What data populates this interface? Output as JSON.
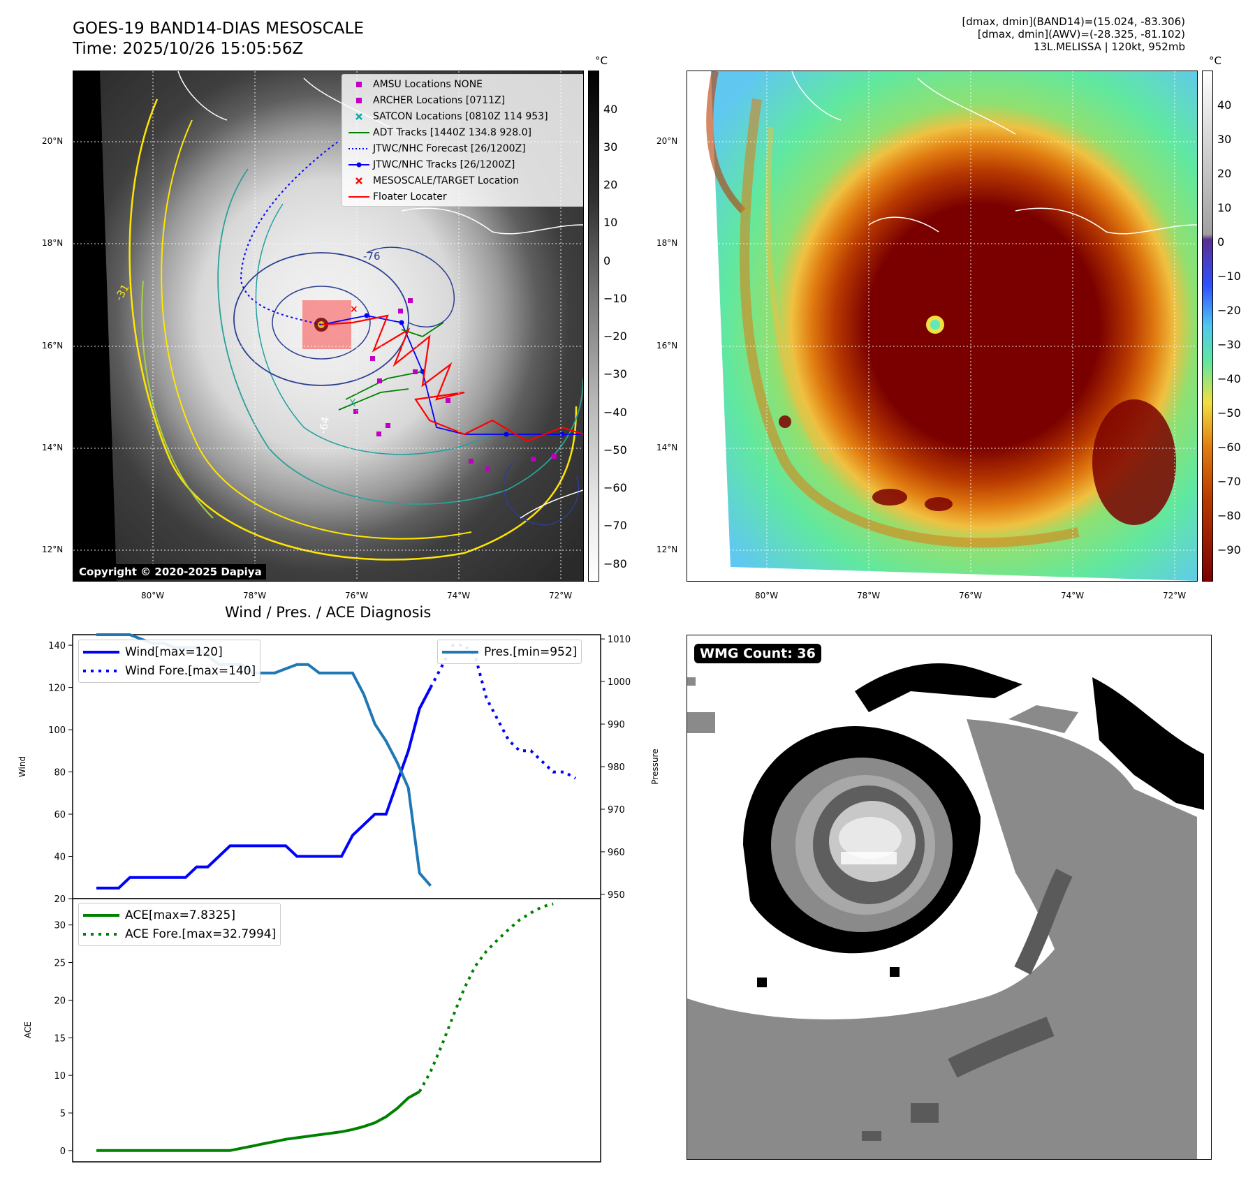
{
  "header": {
    "title_line1": "GOES-19 BAND14-DIAS MESOSCALE",
    "title_line2": "Time: 2025/10/26 15:05:56Z",
    "stats_line1": "[dmax, dmin](BAND14)=(15.024, -83.306)",
    "stats_line2": "[dmax, dmin](AWV)=(-28.325, -81.102)",
    "stats_line3": "13L.MELISSA | 120kt, 952mb"
  },
  "map": {
    "lat_labels": [
      "20°N",
      "18°N",
      "16°N",
      "14°N",
      "12°N"
    ],
    "lon_labels": [
      "80°W",
      "78°W",
      "76°W",
      "74°W",
      "72°W"
    ],
    "contour_labels": [
      "-76",
      "-64",
      "-31"
    ],
    "copyright": "Copyright © 2020-2025 Dapiya",
    "colors": {
      "track_red": "#ff0000",
      "forecast_blue": "#0000ff",
      "adt_green": "#008000",
      "amsu_archer": "#c000c0",
      "satcon": "#00b0b0"
    }
  },
  "legend": [
    {
      "icon": "square-marker",
      "color": "#c000c0",
      "label": "AMSU Locations NONE"
    },
    {
      "icon": "square-marker",
      "color": "#c000c0",
      "label": "ARCHER Locations [0711Z]"
    },
    {
      "icon": "x-marker",
      "color": "#00b0b0",
      "label": "SATCON Locations [0810Z 114 953]"
    },
    {
      "icon": "solid-line",
      "color": "#008000",
      "label": "ADT Tracks [1440Z 134.8 928.0]"
    },
    {
      "icon": "dotted-line",
      "color": "#0000ff",
      "label": "JTWC/NHC Forecast [26/1200Z]"
    },
    {
      "icon": "dot-line",
      "color": "#0000ff",
      "label": "JTWC/NHC Tracks [26/1200Z]"
    },
    {
      "icon": "x-marker",
      "color": "#ff0000",
      "label": "MESOSCALE/TARGET Location"
    },
    {
      "icon": "solid-line",
      "color": "#ff0000",
      "label": "Floater Locater"
    }
  ],
  "colorbar_gray": {
    "unit": "°C",
    "ticks": [
      "40",
      "30",
      "20",
      "10",
      "0",
      "−10",
      "−20",
      "−30",
      "−40",
      "−50",
      "−60",
      "−70",
      "−80"
    ]
  },
  "colorbar_color": {
    "unit": "°C",
    "ticks": [
      "40",
      "30",
      "20",
      "10",
      "0",
      "−10",
      "−20",
      "−30",
      "−40",
      "−50",
      "−60",
      "−70",
      "−80",
      "−90"
    ]
  },
  "wmg": {
    "badge": "WMG Count: 36"
  },
  "chart_data": [
    {
      "type": "line",
      "title": "Wind / Pres. / ACE Diagnosis",
      "ylabel": "Wind",
      "y2label": "Pressure",
      "ylim": [
        20,
        145
      ],
      "y2lim": [
        949,
        1011
      ],
      "yticks": [
        "140",
        "120",
        "100",
        "80",
        "60",
        "40",
        "20"
      ],
      "y2ticks": [
        "1010",
        "1000",
        "990",
        "980",
        "970",
        "960",
        "950"
      ],
      "series": [
        {
          "name": "Wind[max=120]",
          "style": "solid",
          "color": "#0000ff",
          "axis": "left",
          "values": [
            25,
            25,
            25,
            30,
            30,
            30,
            30,
            30,
            30,
            35,
            35,
            40,
            45,
            45,
            45,
            45,
            45,
            45,
            40,
            40,
            40,
            40,
            40,
            50,
            55,
            60,
            60,
            75,
            90,
            110,
            120
          ]
        },
        {
          "name": "Wind Fore.[max=140]",
          "style": "dotted",
          "color": "#0000ff",
          "axis": "left",
          "start_index": 30,
          "values": [
            120,
            130,
            140,
            140,
            135,
            115,
            105,
            95,
            90,
            90,
            85,
            80,
            80,
            77
          ]
        },
        {
          "name": "Pres.[min=952]",
          "style": "solid",
          "color": "#1f77b4",
          "axis": "right",
          "values": [
            1011,
            1011,
            1011,
            1011,
            1010,
            1009,
            1009,
            1008,
            1008,
            1008,
            1006,
            1004,
            1004,
            1004,
            1002,
            1002,
            1002,
            1003,
            1004,
            1004,
            1002,
            1002,
            1002,
            1002,
            997,
            990,
            986,
            981,
            975,
            955,
            952
          ]
        }
      ]
    },
    {
      "type": "line",
      "ylabel": "ACE",
      "ylim": [
        -1.5,
        33.5
      ],
      "yticks": [
        "30",
        "25",
        "20",
        "15",
        "10",
        "5",
        "0"
      ],
      "series": [
        {
          "name": "ACE[max=7.8325]",
          "style": "solid",
          "color": "#008000",
          "values": [
            0,
            0,
            0,
            0,
            0,
            0,
            0,
            0,
            0,
            0,
            0,
            0,
            0,
            0.3,
            0.6,
            0.9,
            1.2,
            1.5,
            1.7,
            1.9,
            2.1,
            2.3,
            2.5,
            2.8,
            3.2,
            3.7,
            4.5,
            5.6,
            7.0,
            7.8325
          ]
        },
        {
          "name": "ACE Fore.[max=32.7994]",
          "style": "dotted",
          "color": "#008000",
          "start_index": 29,
          "values": [
            7.8325,
            10.5,
            14,
            17.8,
            21.5,
            24.5,
            26.5,
            28,
            29.4,
            30.7,
            31.6,
            32.4,
            32.7994
          ]
        }
      ]
    }
  ]
}
